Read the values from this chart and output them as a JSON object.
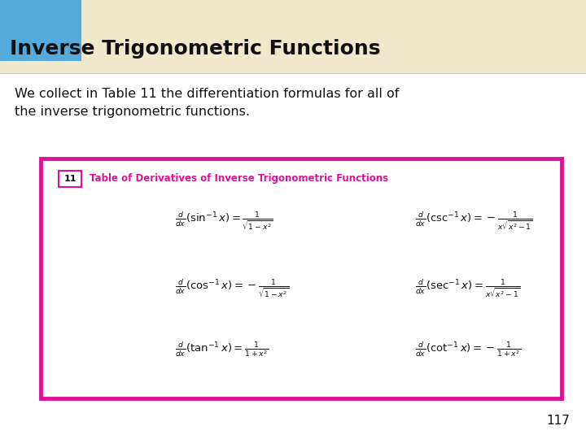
{
  "title": "Inverse Trigonometric Functions",
  "body_text": "We collect in Table 11 the differentiation formulas for all of\nthe inverse trigonometric functions.",
  "table_title": "Table of Derivatives of Inverse Trigonometric Functions",
  "table_number": "11",
  "page_number": "117",
  "bg_color": "#ffffff",
  "header_bg": "#f0e8cc",
  "blue_sq_color": "#55aadd",
  "title_color": "#111111",
  "title_font_size": 18,
  "body_font_size": 11.5,
  "table_border_color": "#dd1199",
  "table_header_color": "#dd1199",
  "formula_font_size": 9.5,
  "formulas_left": [
    "\\frac{d}{dx}(\\sin^{-1}x) = \\frac{1}{\\sqrt{1-x^2}}",
    "\\frac{d}{dx}(\\cos^{-1}x) = -\\frac{1}{\\sqrt{1-x^2}}",
    "\\frac{d}{dx}(\\tan^{-1}x) = \\frac{1}{1+x^2}"
  ],
  "formulas_right": [
    "\\frac{d}{dx}(\\csc^{-1}x) = -\\frac{1}{x\\sqrt{x^2-1}}",
    "\\frac{d}{dx}(\\sec^{-1}x) = \\frac{1}{x\\sqrt{x^2-1}}",
    "\\frac{d}{dx}(\\cot^{-1}x) = -\\frac{1}{1+x^2}"
  ]
}
